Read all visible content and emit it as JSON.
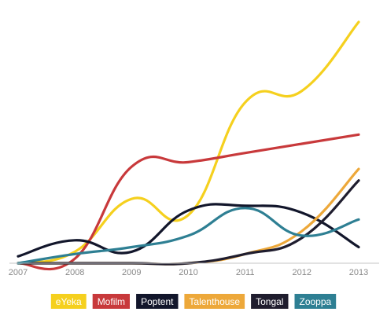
{
  "chart_data": {
    "type": "line",
    "x": [
      "2007",
      "2008",
      "2009",
      "2010",
      "2011",
      "2012",
      "2013"
    ],
    "title": "",
    "xlabel": "",
    "ylabel": "",
    "grid": false,
    "y_axis_shown": false,
    "ylim": [
      -4,
      120
    ],
    "legend_position": "bottom-center",
    "series": [
      {
        "name": "eYeka",
        "color": "#f5d01e",
        "values": [
          0,
          5,
          28,
          21,
          70,
          75,
          105
        ]
      },
      {
        "name": "Mofilm",
        "color": "#c8393b",
        "values": [
          0,
          2,
          42,
          44,
          48,
          52,
          56
        ]
      },
      {
        "name": "Poptent",
        "color": "#12162b",
        "values": [
          3,
          10,
          5,
          23,
          25,
          22,
          7
        ]
      },
      {
        "name": "Talenthouse",
        "color": "#eda83a",
        "values": [
          0,
          0,
          0,
          0,
          4,
          14,
          41
        ]
      },
      {
        "name": "Tongal",
        "color": "#1f1d2e",
        "values": [
          0,
          0,
          0,
          0,
          4,
          11,
          36
        ]
      },
      {
        "name": "Zooppa",
        "color": "#2e7f93",
        "values": [
          0,
          4,
          7,
          12,
          24,
          12,
          19
        ]
      }
    ]
  }
}
